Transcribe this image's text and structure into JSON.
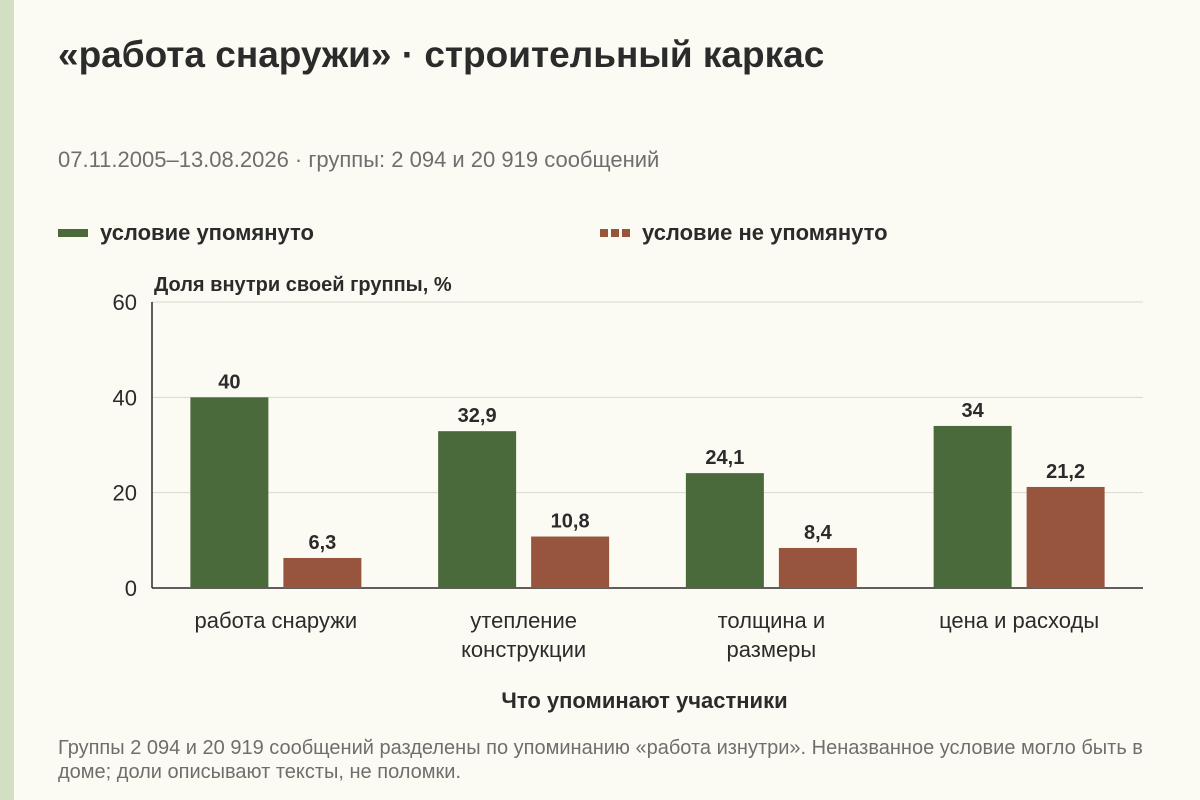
{
  "header": {
    "title": "«работа снаружи» · строительный каркас",
    "subtitle": "07.11.2005–13.08.2026 · группы: 2 094 и 20 919 сообщений"
  },
  "footer": {
    "note": "Группы 2 094 и 20 919 сообщений разделены по упоминанию «работа изнутри». Неназванное условие могло быть в доме; доли описывают тексты, не поломки."
  },
  "colors": {
    "mentioned": "#4a6a3c",
    "not_mentioned": "#98553d",
    "background": "#fcfbf3",
    "stripe": "#d3dfc3"
  },
  "chart_data": {
    "type": "bar",
    "title": "«работа снаружи» · строительный каркас",
    "subtitle": "07.11.2005–13.08.2026 · группы: 2 094 и 20 919 сообщений",
    "xlabel": "Что упоминают участники",
    "ylabel": "Доля внутри своей группы, %",
    "categories": [
      [
        "работа снаружи"
      ],
      [
        "утепление",
        "конструкции"
      ],
      [
        "толщина и",
        "размеры"
      ],
      [
        "цена и расходы"
      ]
    ],
    "series": [
      {
        "name": "условие упомянуто",
        "values": [
          40,
          32.9,
          24.1,
          34
        ],
        "labels": [
          "40",
          "32,9",
          "24,1",
          "34"
        ],
        "color": "#4a6a3c"
      },
      {
        "name": "условие не упомянуто",
        "values": [
          6.3,
          10.8,
          8.4,
          21.2
        ],
        "labels": [
          "6,3",
          "10,8",
          "8,4",
          "21,2"
        ],
        "color": "#98553d"
      }
    ],
    "ylim": [
      0,
      60
    ],
    "yticks": [
      0,
      20,
      40,
      60
    ],
    "grid": true,
    "legend_position": "top"
  }
}
